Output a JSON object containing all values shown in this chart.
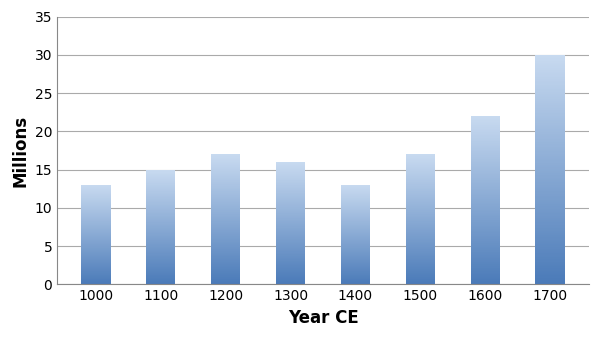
{
  "years": [
    "1000",
    "1100",
    "1200",
    "1300",
    "1400",
    "1500",
    "1600",
    "1700"
  ],
  "values": [
    13,
    15,
    17,
    16,
    13,
    17,
    22,
    30
  ],
  "bar_color_bottom": "#4a7ab8",
  "bar_color_top": "#c8daf0",
  "xlabel": "Year CE",
  "ylabel": "Millions",
  "ylim": [
    0,
    35
  ],
  "yticks": [
    0,
    5,
    10,
    15,
    20,
    25,
    30,
    35
  ],
  "background_color": "#ffffff",
  "grid_color": "#aaaaaa",
  "xlabel_fontsize": 12,
  "ylabel_fontsize": 12,
  "tick_fontsize": 10,
  "bar_width": 0.45,
  "n_grad": 200
}
